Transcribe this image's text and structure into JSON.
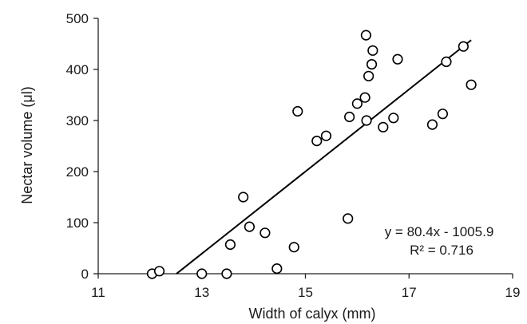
{
  "chart_data": {
    "type": "scatter",
    "xlabel": "Width of calyx (mm)",
    "ylabel": "Nectar volume (μl)",
    "xlim": [
      11,
      19
    ],
    "ylim": [
      0,
      500
    ],
    "x_ticks": [
      "11",
      "13",
      "15",
      "17",
      "19"
    ],
    "y_ticks": [
      "0",
      "100",
      "200",
      "300",
      "400",
      "500"
    ],
    "grid": false,
    "points": {
      "x": [
        12.04,
        12.18,
        13.0,
        13.48,
        13.55,
        13.8,
        13.92,
        14.22,
        14.45,
        14.78,
        14.85,
        15.22,
        15.4,
        15.82,
        15.85,
        16.0,
        16.15,
        16.17,
        16.18,
        16.22,
        16.28,
        16.3,
        16.5,
        16.7,
        16.78,
        17.45,
        17.65,
        17.72,
        18.05,
        18.2
      ],
      "y": [
        0,
        5,
        0,
        0,
        57,
        150,
        92,
        80,
        10,
        52,
        318,
        260,
        270,
        108,
        307,
        333,
        345,
        467,
        300,
        387,
        410,
        437,
        287,
        305,
        420,
        292,
        313,
        415,
        445,
        370
      ]
    },
    "trendline": {
      "slope": 80.4,
      "intercept": -1005.9,
      "x_range": [
        12.51,
        18.2
      ],
      "equation": "y = 80.4x - 1005.9",
      "r_squared": "R² = 0.716"
    }
  }
}
